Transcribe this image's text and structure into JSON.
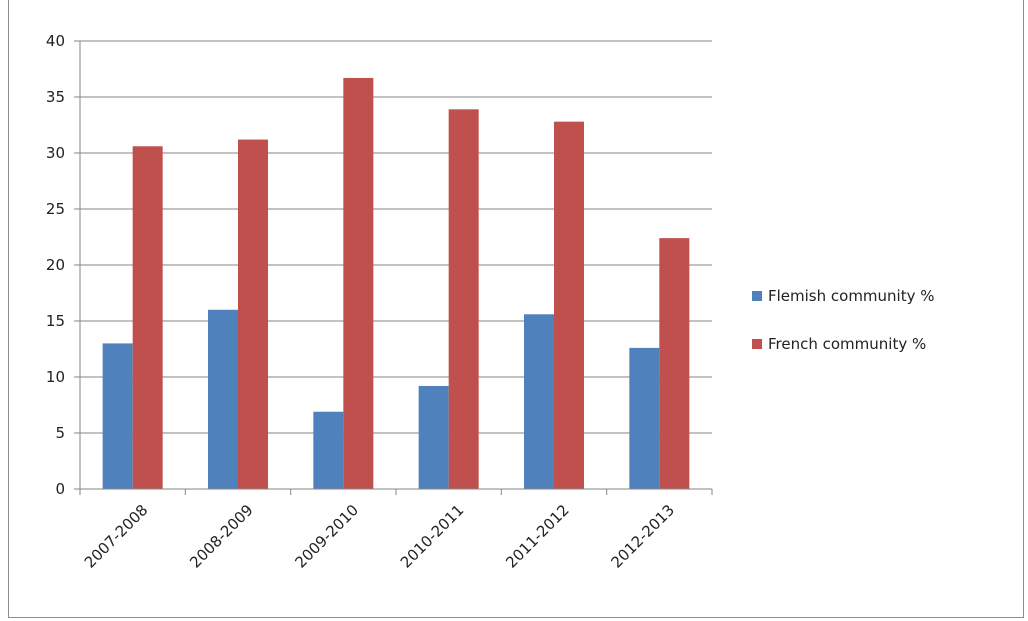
{
  "chart_data": {
    "type": "bar",
    "title": "",
    "xlabel": "",
    "ylabel": "",
    "categories": [
      "2007-2008",
      "2008-2009",
      "2009-2010",
      "2010-2011",
      "2011-2012",
      "2012-2013"
    ],
    "series": [
      {
        "name": "Flemish community %",
        "color": "#4f81bd",
        "values": [
          13.0,
          16.0,
          6.9,
          9.2,
          15.6,
          12.6
        ]
      },
      {
        "name": "French community %",
        "color": "#c0504d",
        "values": [
          30.6,
          31.2,
          36.7,
          33.9,
          32.8,
          22.4
        ]
      }
    ],
    "ylim": [
      0,
      40
    ],
    "yticks": [
      0,
      5,
      10,
      15,
      20,
      25,
      30,
      35,
      40
    ],
    "grid": true,
    "legend": "right"
  }
}
